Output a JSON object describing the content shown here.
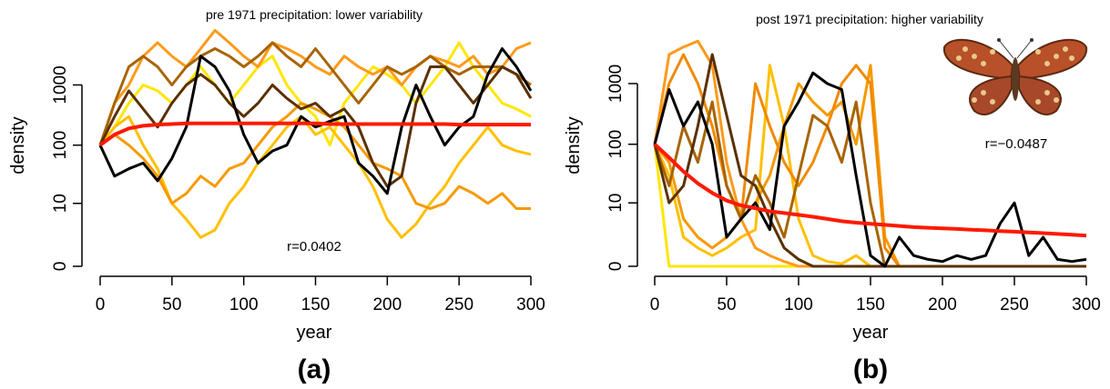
{
  "chart_data": [
    {
      "type": "line",
      "panel_label": "(a)",
      "title": "pre 1971 precipitation: lower variability",
      "xlabel": "year",
      "ylabel": "density",
      "annotation": "r=0.0402",
      "xlim": [
        0,
        300
      ],
      "x_ticks": [
        "0",
        "50",
        "100",
        "150",
        "200",
        "250",
        "300"
      ],
      "y_ticks": [
        "0",
        "10",
        "100",
        "1000"
      ],
      "y_scale": "log(1+density)",
      "grid": false,
      "x": [
        0,
        10,
        20,
        30,
        40,
        50,
        60,
        70,
        80,
        90,
        100,
        110,
        120,
        130,
        140,
        150,
        160,
        170,
        180,
        190,
        200,
        210,
        220,
        230,
        240,
        250,
        260,
        270,
        280,
        290,
        300
      ],
      "series": [
        {
          "color": "#ffe600",
          "values": [
            100,
            200,
            500,
            1000,
            800,
            500,
            1000,
            2000,
            1000,
            500,
            1000,
            2000,
            3000,
            1000,
            500,
            300,
            100,
            500,
            1000,
            2000,
            1500,
            1000,
            500,
            1000,
            2000,
            5000,
            2000,
            1000,
            500,
            400,
            300
          ]
        },
        {
          "color": "#ffc000",
          "values": [
            100,
            200,
            300,
            100,
            40,
            10,
            5,
            2,
            3,
            10,
            20,
            50,
            100,
            200,
            300,
            150,
            200,
            100,
            50,
            20,
            5,
            2,
            4,
            10,
            20,
            50,
            100,
            200,
            100,
            80,
            70
          ]
        },
        {
          "color": "#f59a00",
          "values": [
            100,
            150,
            100,
            60,
            30,
            10,
            15,
            30,
            20,
            40,
            50,
            100,
            200,
            300,
            500,
            400,
            300,
            200,
            100,
            50,
            40,
            30,
            10,
            8,
            10,
            20,
            15,
            10,
            15,
            8,
            8
          ]
        },
        {
          "color": "#ff9a1a",
          "values": [
            100,
            500,
            1000,
            3000,
            5000,
            3000,
            2000,
            4000,
            8000,
            5000,
            3000,
            2000,
            5000,
            4000,
            3000,
            2000,
            1500,
            3000,
            2000,
            1500,
            2000,
            1000,
            2000,
            3000,
            2500,
            2000,
            3000,
            1500,
            2000,
            4000,
            5000
          ]
        },
        {
          "color": "#a86400",
          "values": [
            100,
            500,
            2000,
            3000,
            2000,
            1000,
            2000,
            3000,
            4000,
            3000,
            2000,
            3000,
            5000,
            3000,
            2000,
            4000,
            2000,
            1000,
            500,
            1000,
            2000,
            1500,
            2000,
            3000,
            2000,
            1500,
            2000,
            2000,
            2000,
            1500,
            1000
          ]
        },
        {
          "color": "#5a3000",
          "values": [
            100,
            300,
            800,
            400,
            200,
            500,
            1000,
            1500,
            1000,
            500,
            300,
            500,
            1000,
            600,
            400,
            500,
            300,
            400,
            200,
            50,
            20,
            30,
            500,
            2000,
            2000,
            1000,
            500,
            1000,
            2000,
            1500,
            600
          ]
        },
        {
          "color": "#000000",
          "values": [
            100,
            30,
            40,
            50,
            25,
            60,
            200,
            3000,
            2000,
            800,
            150,
            50,
            80,
            100,
            300,
            200,
            250,
            300,
            50,
            30,
            15,
            200,
            1000,
            300,
            100,
            200,
            300,
            1500,
            4000,
            2000,
            800
          ]
        },
        {
          "color": "#ff1a00",
          "role": "mean",
          "values": [
            100,
            150,
            190,
            210,
            220,
            225,
            230,
            230,
            230,
            230,
            230,
            230,
            230,
            230,
            230,
            230,
            225,
            225,
            225,
            225,
            225,
            225,
            225,
            225,
            225,
            220,
            220,
            220,
            220,
            220,
            220
          ]
        }
      ]
    },
    {
      "type": "line",
      "panel_label": "(b)",
      "title": "post 1971 precipitation: higher variability",
      "xlabel": "year",
      "ylabel": "density",
      "annotation": "r=−0.0487",
      "xlim": [
        0,
        300
      ],
      "x_ticks": [
        "0",
        "50",
        "100",
        "150",
        "200",
        "250",
        "300"
      ],
      "y_ticks": [
        "0",
        "10",
        "100",
        "1000"
      ],
      "y_scale": "log(1+density)",
      "grid": false,
      "image": "butterfly",
      "x": [
        0,
        10,
        20,
        30,
        40,
        50,
        60,
        70,
        80,
        90,
        100,
        110,
        120,
        130,
        140,
        150,
        160,
        170,
        180,
        190,
        200,
        210,
        220,
        230,
        240,
        250,
        260,
        270,
        280,
        290,
        300
      ],
      "series": [
        {
          "color": "#ffe600",
          "values": [
            100,
            0,
            0,
            0,
            0,
            0,
            0,
            0,
            0,
            0,
            0,
            0,
            0,
            0,
            0,
            0,
            0,
            0,
            0,
            0,
            0,
            0,
            0,
            0,
            0,
            0,
            0,
            0,
            0,
            0,
            0
          ]
        },
        {
          "color": "#ffc000",
          "values": [
            100,
            30,
            2,
            1,
            0.5,
            1,
            2,
            3,
            2000,
            200,
            5,
            0.5,
            0.2,
            0.1,
            0.5,
            0,
            0,
            0,
            0,
            0,
            0,
            0,
            0,
            0,
            0,
            0,
            0,
            0,
            0,
            0,
            0
          ]
        },
        {
          "color": "#f59a00",
          "values": [
            100,
            50,
            5,
            2,
            1,
            2,
            5,
            10,
            30,
            200,
            1000,
            500,
            300,
            500,
            100,
            2000,
            2,
            0,
            0,
            0,
            0,
            0,
            0,
            0,
            0,
            0,
            0,
            0,
            0,
            0,
            0
          ]
        },
        {
          "color": "#ff9a1a",
          "values": [
            100,
            3000,
            4000,
            5000,
            2000,
            50,
            5,
            1,
            0.5,
            0.2,
            0,
            0,
            0,
            0,
            0,
            0,
            0,
            0,
            0,
            0,
            0,
            0,
            0,
            0,
            0,
            0,
            0,
            0,
            0,
            0,
            0
          ]
        },
        {
          "color": "#f08a00",
          "values": [
            100,
            1000,
            3000,
            1000,
            200,
            20,
            5,
            1000,
            200,
            50,
            20,
            50,
            200,
            1000,
            2000,
            1000,
            1,
            0,
            0,
            0,
            0,
            0,
            0,
            0,
            0,
            0,
            0,
            0,
            0,
            0,
            0
          ]
        },
        {
          "color": "#a86400",
          "values": [
            100,
            20,
            200,
            50,
            500,
            20,
            5,
            30,
            10,
            2,
            30,
            300,
            200,
            50,
            500,
            10,
            0,
            0,
            0,
            0,
            0,
            0,
            0,
            0,
            0,
            0,
            0,
            0,
            0,
            0,
            0
          ]
        },
        {
          "color": "#5a3000",
          "values": [
            100,
            10,
            20,
            200,
            3000,
            300,
            30,
            20,
            5,
            1,
            0.3,
            0,
            0,
            0,
            0,
            0,
            0,
            0,
            0,
            0,
            0,
            0,
            0,
            0,
            0,
            0,
            0,
            0,
            0,
            0,
            0
          ]
        },
        {
          "color": "#000000",
          "values": [
            100,
            800,
            200,
            500,
            100,
            2,
            5,
            10,
            3,
            200,
            500,
            1500,
            1000,
            800,
            30,
            0.5,
            0,
            2,
            0.5,
            0.3,
            0.2,
            0.5,
            0.3,
            0.5,
            4,
            10,
            0.5,
            2,
            0.3,
            0.2,
            0.3
          ]
        },
        {
          "color": "#ff1a00",
          "role": "mean",
          "values": [
            100,
            60,
            35,
            22,
            15,
            11,
            9,
            8,
            7,
            6.5,
            6,
            5.5,
            5,
            4.5,
            4.2,
            4,
            3.8,
            3.6,
            3.4,
            3.3,
            3.2,
            3.1,
            3,
            2.9,
            2.8,
            2.7,
            2.6,
            2.5,
            2.4,
            2.3,
            2.2
          ]
        }
      ]
    }
  ]
}
